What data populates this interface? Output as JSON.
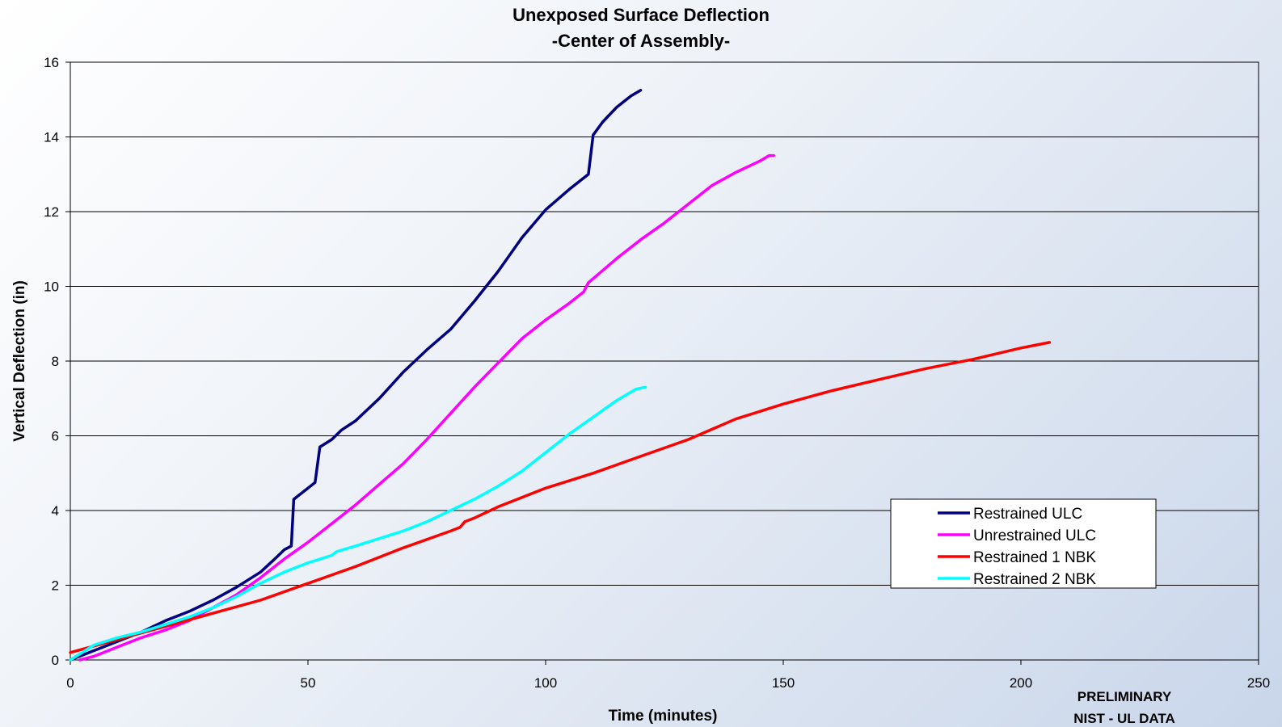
{
  "chart_data": {
    "type": "line",
    "title": "Unexposed Surface Deflection",
    "subtitle": "-Center of Assembly-",
    "xlabel": "Time (minutes)",
    "ylabel": "Vertical Deflection (in)",
    "xlim": [
      0,
      250
    ],
    "ylim": [
      0,
      16
    ],
    "xticks": [
      0,
      50,
      100,
      150,
      200,
      250
    ],
    "yticks": [
      0,
      2,
      4,
      6,
      8,
      10,
      12,
      14,
      16
    ],
    "grid": "horizontal",
    "legend_position": "lower-right",
    "series": [
      {
        "name": "Restrained ULC",
        "color": "#000080",
        "points": [
          [
            0,
            0
          ],
          [
            5,
            0.25
          ],
          [
            10,
            0.5
          ],
          [
            15,
            0.75
          ],
          [
            20,
            1.05
          ],
          [
            25,
            1.3
          ],
          [
            30,
            1.6
          ],
          [
            35,
            1.95
          ],
          [
            40,
            2.35
          ],
          [
            43,
            2.7
          ],
          [
            45,
            2.95
          ],
          [
            46.5,
            3.05
          ],
          [
            47,
            4.3
          ],
          [
            48,
            4.4
          ],
          [
            50,
            4.6
          ],
          [
            51.5,
            4.75
          ],
          [
            52.5,
            5.7
          ],
          [
            55,
            5.9
          ],
          [
            57,
            6.15
          ],
          [
            60,
            6.4
          ],
          [
            65,
            7.0
          ],
          [
            70,
            7.7
          ],
          [
            75,
            8.3
          ],
          [
            80,
            8.85
          ],
          [
            85,
            9.6
          ],
          [
            90,
            10.4
          ],
          [
            95,
            11.3
          ],
          [
            100,
            12.05
          ],
          [
            105,
            12.6
          ],
          [
            109,
            13.0
          ],
          [
            110,
            14.05
          ],
          [
            112,
            14.4
          ],
          [
            115,
            14.8
          ],
          [
            118,
            15.1
          ],
          [
            120,
            15.25
          ]
        ]
      },
      {
        "name": "Unrestrained ULC",
        "color": "#ff00ff",
        "points": [
          [
            2,
            0
          ],
          [
            5,
            0.1
          ],
          [
            10,
            0.35
          ],
          [
            15,
            0.6
          ],
          [
            20,
            0.8
          ],
          [
            25,
            1.05
          ],
          [
            30,
            1.4
          ],
          [
            35,
            1.75
          ],
          [
            40,
            2.2
          ],
          [
            45,
            2.7
          ],
          [
            50,
            3.15
          ],
          [
            55,
            3.65
          ],
          [
            60,
            4.15
          ],
          [
            65,
            4.7
          ],
          [
            70,
            5.25
          ],
          [
            75,
            5.9
          ],
          [
            80,
            6.6
          ],
          [
            85,
            7.3
          ],
          [
            90,
            7.95
          ],
          [
            95,
            8.6
          ],
          [
            100,
            9.1
          ],
          [
            105,
            9.55
          ],
          [
            108,
            9.85
          ],
          [
            109,
            10.1
          ],
          [
            115,
            10.75
          ],
          [
            120,
            11.25
          ],
          [
            125,
            11.7
          ],
          [
            130,
            12.2
          ],
          [
            135,
            12.7
          ],
          [
            140,
            13.05
          ],
          [
            145,
            13.35
          ],
          [
            147,
            13.5
          ],
          [
            148,
            13.5
          ]
        ]
      },
      {
        "name": "Restrained 1 NBK",
        "color": "#ff0000",
        "points": [
          [
            0,
            0.2
          ],
          [
            10,
            0.55
          ],
          [
            20,
            0.9
          ],
          [
            30,
            1.25
          ],
          [
            40,
            1.6
          ],
          [
            50,
            2.05
          ],
          [
            60,
            2.5
          ],
          [
            70,
            3.0
          ],
          [
            80,
            3.45
          ],
          [
            82,
            3.55
          ],
          [
            83,
            3.7
          ],
          [
            85,
            3.8
          ],
          [
            90,
            4.1
          ],
          [
            100,
            4.6
          ],
          [
            110,
            5.0
          ],
          [
            120,
            5.45
          ],
          [
            130,
            5.9
          ],
          [
            140,
            6.45
          ],
          [
            150,
            6.85
          ],
          [
            160,
            7.2
          ],
          [
            170,
            7.5
          ],
          [
            180,
            7.8
          ],
          [
            190,
            8.05
          ],
          [
            200,
            8.35
          ],
          [
            206,
            8.5
          ]
        ]
      },
      {
        "name": "Restrained 2 NBK",
        "color": "#00ffff",
        "points": [
          [
            0,
            0
          ],
          [
            5,
            0.4
          ],
          [
            10,
            0.6
          ],
          [
            15,
            0.75
          ],
          [
            20,
            0.95
          ],
          [
            25,
            1.15
          ],
          [
            30,
            1.4
          ],
          [
            35,
            1.7
          ],
          [
            40,
            2.05
          ],
          [
            45,
            2.35
          ],
          [
            50,
            2.6
          ],
          [
            55,
            2.8
          ],
          [
            56,
            2.9
          ],
          [
            60,
            3.05
          ],
          [
            65,
            3.25
          ],
          [
            70,
            3.45
          ],
          [
            75,
            3.7
          ],
          [
            80,
            4.0
          ],
          [
            85,
            4.3
          ],
          [
            90,
            4.65
          ],
          [
            95,
            5.05
          ],
          [
            100,
            5.55
          ],
          [
            105,
            6.05
          ],
          [
            110,
            6.5
          ],
          [
            115,
            6.95
          ],
          [
            119,
            7.25
          ],
          [
            121,
            7.3
          ]
        ]
      }
    ],
    "annotation": [
      "PRELIMINARY",
      "NIST - UL DATA"
    ]
  }
}
